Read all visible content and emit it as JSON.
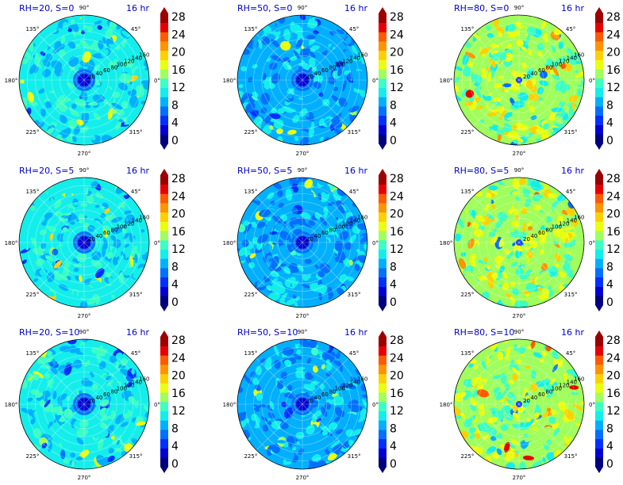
{
  "chart_data": [
    {
      "type": "heatmap",
      "projection": "polar",
      "title_left": "RH=20, S=0",
      "title_right": "16 hr",
      "level": "low",
      "colorbar_ticks": [
        "0",
        "4",
        "8",
        "12",
        "16",
        "20",
        "24",
        "28"
      ],
      "angle_labels": [
        "90°",
        "45°",
        "0°",
        "315°",
        "270°",
        "225°",
        "180°",
        "135°"
      ],
      "radial_labels": [
        "20",
        "40",
        "60",
        "80",
        "100",
        "120",
        "140",
        "160"
      ],
      "grid": true
    },
    {
      "type": "heatmap",
      "projection": "polar",
      "title_left": "RH=50, S=0",
      "title_right": "16 hr",
      "level": "mid",
      "colorbar_ticks": [
        "0",
        "4",
        "8",
        "12",
        "16",
        "20",
        "24",
        "28"
      ],
      "angle_labels": [
        "90°",
        "45°",
        "0°",
        "315°",
        "270°",
        "225°",
        "180°",
        "135°"
      ],
      "radial_labels": [
        "20",
        "40",
        "60",
        "80",
        "100",
        "120",
        "140",
        "160"
      ],
      "grid": true
    },
    {
      "type": "heatmap",
      "projection": "polar",
      "title_left": "RH=80, S=0",
      "title_right": "16 hr",
      "level": "high",
      "colorbar_ticks": [
        "0",
        "4",
        "8",
        "12",
        "16",
        "20",
        "24",
        "28"
      ],
      "angle_labels": [
        "90°",
        "45°",
        "0°",
        "315°",
        "270°",
        "225°",
        "180°",
        "135°"
      ],
      "radial_labels": [
        "20",
        "40",
        "60",
        "80",
        "100",
        "120",
        "140",
        "160"
      ],
      "grid": true
    },
    {
      "type": "heatmap",
      "projection": "polar",
      "title_left": "RH=20, S=5",
      "title_right": "16 hr",
      "level": "low",
      "colorbar_ticks": [
        "0",
        "4",
        "8",
        "12",
        "16",
        "20",
        "24",
        "28"
      ],
      "angle_labels": [
        "90°",
        "45°",
        "0°",
        "315°",
        "270°",
        "225°",
        "180°",
        "135°"
      ],
      "radial_labels": [
        "20",
        "40",
        "60",
        "80",
        "100",
        "120",
        "140",
        "160"
      ],
      "grid": true
    },
    {
      "type": "heatmap",
      "projection": "polar",
      "title_left": "RH=50, S=5",
      "title_right": "16 hr",
      "level": "mid",
      "colorbar_ticks": [
        "0",
        "4",
        "8",
        "12",
        "16",
        "20",
        "24",
        "28"
      ],
      "angle_labels": [
        "90°",
        "45°",
        "0°",
        "315°",
        "270°",
        "225°",
        "180°",
        "135°"
      ],
      "radial_labels": [
        "20",
        "40",
        "60",
        "80",
        "100",
        "120",
        "140",
        "160"
      ],
      "grid": true
    },
    {
      "type": "heatmap",
      "projection": "polar",
      "title_left": "RH=80, S=5",
      "title_right": "16 hr",
      "level": "high",
      "colorbar_ticks": [
        "0",
        "4",
        "8",
        "12",
        "16",
        "20",
        "24",
        "28"
      ],
      "angle_labels": [
        "90°",
        "45°",
        "0°",
        "315°",
        "270°",
        "225°",
        "180°",
        "135°"
      ],
      "radial_labels": [
        "20",
        "40",
        "60",
        "80",
        "100",
        "120",
        "140",
        "160"
      ],
      "grid": true
    },
    {
      "type": "heatmap",
      "projection": "polar",
      "title_left": "RH=20, S=10",
      "title_right": "16 hr",
      "level": "low",
      "colorbar_ticks": [
        "0",
        "4",
        "8",
        "12",
        "16",
        "20",
        "24",
        "28"
      ],
      "angle_labels": [
        "90°",
        "45°",
        "0°",
        "315°",
        "270°",
        "225°",
        "180°",
        "135°"
      ],
      "radial_labels": [
        "20",
        "40",
        "60",
        "80",
        "100",
        "120",
        "140",
        "160"
      ],
      "grid": true
    },
    {
      "type": "heatmap",
      "projection": "polar",
      "title_left": "RH=50, S=10",
      "title_right": "16 hr",
      "level": "mid",
      "colorbar_ticks": [
        "0",
        "4",
        "8",
        "12",
        "16",
        "20",
        "24",
        "28"
      ],
      "angle_labels": [
        "90°",
        "45°",
        "0°",
        "315°",
        "270°",
        "225°",
        "180°",
        "135°"
      ],
      "radial_labels": [
        "20",
        "40",
        "60",
        "80",
        "100",
        "120",
        "140",
        "160"
      ],
      "grid": true
    },
    {
      "type": "heatmap",
      "projection": "polar",
      "title_left": "RH=80, S=10",
      "title_right": "16 hr",
      "level": "high",
      "colorbar_ticks": [
        "0",
        "4",
        "8",
        "12",
        "16",
        "20",
        "24",
        "28"
      ],
      "angle_labels": [
        "90°",
        "45°",
        "0°",
        "315°",
        "270°",
        "225°",
        "180°",
        "135°"
      ],
      "radial_labels": [
        "20",
        "40",
        "60",
        "80",
        "100",
        "120",
        "140",
        "160"
      ],
      "grid": true
    }
  ],
  "colormap": [
    "#00007f",
    "#0000d4",
    "#0030ff",
    "#0070ff",
    "#00b0ff",
    "#14eeeb",
    "#3cffc4",
    "#a0ff5c",
    "#eaff0e",
    "#ffd000",
    "#ff9400",
    "#ff5a00",
    "#e80000",
    "#9c0000"
  ]
}
